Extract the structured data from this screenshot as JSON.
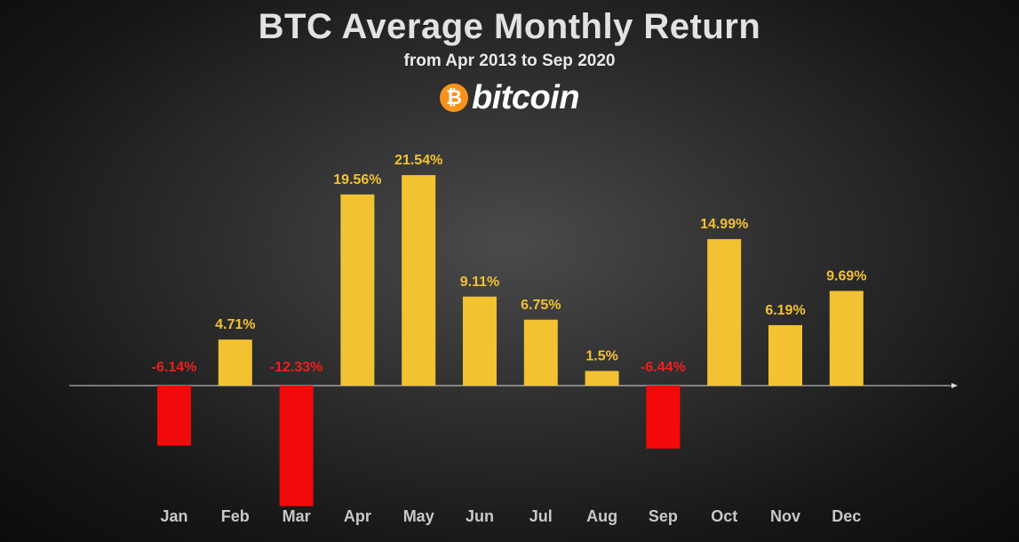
{
  "header": {
    "title": "BTC Average Monthly Return",
    "subtitle": "from Apr 2013 to Sep 2020"
  },
  "logo": {
    "coin_symbol": "₿",
    "wordmark": "bitcoin",
    "coin_color": "#f7931a"
  },
  "chart_data": {
    "type": "bar",
    "title": "BTC Average Monthly Return",
    "subtitle": "from Apr 2013 to Sep 2020",
    "xlabel": "",
    "ylabel": "",
    "categories": [
      "Jan",
      "Feb",
      "Mar",
      "Apr",
      "May",
      "Jun",
      "Jul",
      "Aug",
      "Sep",
      "Oct",
      "Nov",
      "Dec"
    ],
    "values": [
      -6.14,
      4.71,
      -12.33,
      19.56,
      21.54,
      9.11,
      6.75,
      1.5,
      -6.44,
      14.99,
      6.19,
      9.69
    ],
    "labels": [
      "-6.14%",
      "4.71%",
      "-12.33%",
      "19.56%",
      "21.54%",
      "9.11%",
      "6.75%",
      "1.5%",
      "-6.44%",
      "14.99%",
      "6.19%",
      "9.69%"
    ],
    "ylim": [
      -12.5,
      22
    ],
    "grid": false,
    "legend": "none",
    "colors": {
      "positive": "#f2c233",
      "negative": "#f20a0a",
      "positive_label": "#f2c233",
      "negative_label": "#f01e1e",
      "axis": "#d8d8d8"
    }
  }
}
